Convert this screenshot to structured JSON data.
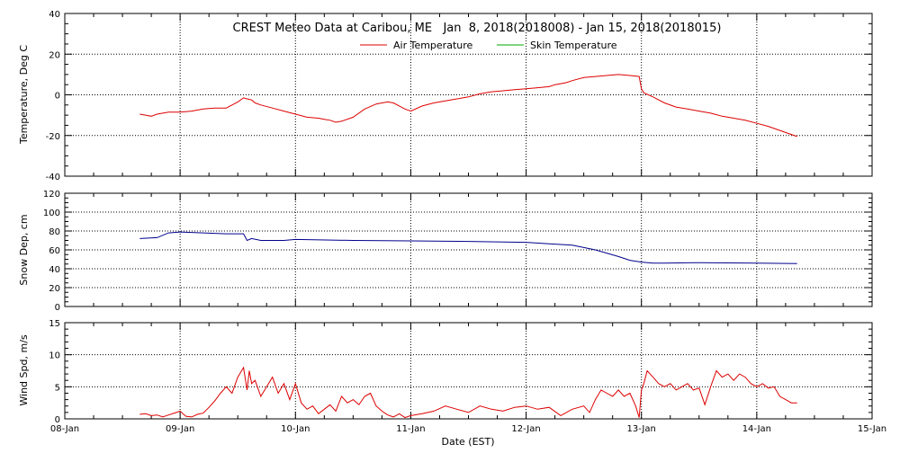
{
  "chart_data": [
    {
      "type": "line",
      "title": "CREST Meteo Data at Caribou, ME   Jan  8, 2018(2018008) - Jan 15, 2018(2018015)",
      "ylabel": "Temperature, Deg C",
      "xlabel": "",
      "ylim": [
        -40,
        40
      ],
      "yticks": [
        "40",
        "20",
        "0",
        "-20",
        "-40"
      ],
      "legend": "top-center",
      "grid": true,
      "series": [
        {
          "name": "Air Temperature",
          "color": "#dd0000",
          "x": [
            0.65,
            0.7,
            0.75,
            0.8,
            0.9,
            1.0,
            1.1,
            1.2,
            1.3,
            1.4,
            1.5,
            1.55,
            1.58,
            1.62,
            1.65,
            1.7,
            1.8,
            1.9,
            2.0,
            2.1,
            2.2,
            2.25,
            2.3,
            2.35,
            2.4,
            2.5,
            2.6,
            2.7,
            2.75,
            2.8,
            2.85,
            2.9,
            2.95,
            3.0,
            3.1,
            3.2,
            3.3,
            3.4,
            3.5,
            3.6,
            3.7,
            3.8,
            3.9,
            4.0,
            4.1,
            4.2,
            4.25,
            4.3,
            4.35,
            4.4,
            4.5,
            4.6,
            4.7,
            4.8,
            4.9,
            4.98,
            5.0,
            5.02,
            5.1,
            5.2,
            5.3,
            5.4,
            5.5,
            5.6,
            5.7,
            5.8,
            5.9,
            6.0,
            6.1,
            6.2,
            6.3,
            6.35
          ],
          "y": [
            -9.5,
            -10,
            -10.5,
            -9.5,
            -8.5,
            -8.5,
            -8,
            -7,
            -6.5,
            -6.5,
            -3.5,
            -1.5,
            -2,
            -2.5,
            -4,
            -5,
            -6.5,
            -8,
            -9.5,
            -11,
            -11.5,
            -12,
            -12.5,
            -13.5,
            -13,
            -11,
            -7,
            -4.5,
            -4,
            -3.5,
            -4,
            -5.5,
            -7,
            -8,
            -5.5,
            -4,
            -3,
            -2,
            -1,
            0.5,
            1.5,
            2,
            2.5,
            3,
            3.5,
            4,
            5,
            5.5,
            6,
            7,
            8.5,
            9,
            9.5,
            10,
            9.5,
            9,
            3,
            1,
            -1,
            -4,
            -6,
            -7,
            -8,
            -9,
            -10.5,
            -11.5,
            -12.5,
            -14,
            -15.5,
            -17.5,
            -19.5,
            -20.5
          ]
        },
        {
          "name": "Skin Temperature",
          "color": "#00aa00",
          "x": [],
          "y": []
        }
      ]
    },
    {
      "type": "line",
      "title": "",
      "ylabel": "Snow Dep, cm",
      "xlabel": "",
      "ylim": [
        0,
        120
      ],
      "yticks": [
        "120",
        "100",
        "80",
        "60",
        "40",
        "20",
        "0"
      ],
      "grid": true,
      "series": [
        {
          "name": "Snow Depth",
          "color": "#00008b",
          "x": [
            0.65,
            0.8,
            0.9,
            1.0,
            1.2,
            1.4,
            1.55,
            1.58,
            1.62,
            1.7,
            1.8,
            1.9,
            2.0,
            2.5,
            3.0,
            3.5,
            4.0,
            4.2,
            4.4,
            4.6,
            4.8,
            4.9,
            5.0,
            5.1,
            5.2,
            5.5,
            6.0,
            6.35
          ],
          "y": [
            72,
            73,
            78,
            79,
            78,
            77,
            77,
            70,
            72,
            70,
            70,
            70,
            71,
            70,
            69.5,
            69,
            68,
            66.5,
            65,
            60,
            53,
            49,
            47,
            46,
            46,
            46.5,
            46,
            45.5
          ]
        }
      ]
    },
    {
      "type": "line",
      "title": "",
      "ylabel": "Wind Spd, m/s",
      "xlabel": "Date (EST)",
      "ylim": [
        0,
        15
      ],
      "yticks": [
        "15",
        "10",
        "5",
        "0"
      ],
      "xticks": [
        "08-Jan",
        "09-Jan",
        "10-Jan",
        "11-Jan",
        "12-Jan",
        "13-Jan",
        "14-Jan",
        "15-Jan"
      ],
      "grid": true,
      "series": [
        {
          "name": "Wind Speed",
          "color": "#dd0000",
          "x": [
            0.65,
            0.7,
            0.75,
            0.8,
            0.85,
            0.9,
            0.95,
            1.0,
            1.05,
            1.1,
            1.15,
            1.2,
            1.25,
            1.3,
            1.35,
            1.4,
            1.45,
            1.5,
            1.55,
            1.58,
            1.6,
            1.62,
            1.65,
            1.7,
            1.75,
            1.8,
            1.85,
            1.9,
            1.95,
            2.0,
            2.05,
            2.1,
            2.15,
            2.2,
            2.25,
            2.3,
            2.35,
            2.4,
            2.45,
            2.5,
            2.55,
            2.6,
            2.65,
            2.7,
            2.75,
            2.8,
            2.85,
            2.9,
            2.95,
            3.0,
            3.1,
            3.2,
            3.3,
            3.4,
            3.5,
            3.6,
            3.7,
            3.8,
            3.9,
            4.0,
            4.1,
            4.2,
            4.3,
            4.4,
            4.5,
            4.55,
            4.6,
            4.65,
            4.7,
            4.75,
            4.8,
            4.85,
            4.9,
            4.95,
            4.98,
            5.0,
            5.02,
            5.05,
            5.1,
            5.15,
            5.2,
            5.25,
            5.3,
            5.35,
            5.4,
            5.45,
            5.5,
            5.55,
            5.6,
            5.65,
            5.7,
            5.75,
            5.8,
            5.85,
            5.9,
            5.95,
            6.0,
            6.05,
            6.1,
            6.15,
            6.2,
            6.25,
            6.3,
            6.35
          ],
          "y": [
            0.7,
            0.8,
            0.5,
            0.6,
            0.3,
            0.6,
            0.9,
            1.2,
            0.4,
            0.3,
            0.7,
            0.9,
            1.8,
            2.8,
            4.0,
            5.0,
            4.0,
            6.5,
            8.0,
            4.5,
            7.5,
            5.5,
            6.0,
            3.5,
            5.0,
            6.5,
            4.0,
            5.5,
            3.0,
            5.5,
            2.5,
            1.5,
            2.0,
            0.8,
            1.5,
            2.2,
            1.2,
            3.5,
            2.5,
            3.0,
            2.2,
            3.5,
            4.0,
            2.0,
            1.2,
            0.6,
            0.3,
            0.8,
            0.2,
            0.5,
            0.8,
            1.2,
            2.0,
            1.5,
            1.0,
            2.0,
            1.5,
            1.2,
            1.8,
            2.0,
            1.5,
            1.8,
            0.5,
            1.5,
            2.0,
            1.0,
            3.0,
            4.5,
            4.0,
            3.5,
            4.5,
            3.5,
            4.0,
            2.0,
            0.2,
            4.5,
            5.5,
            7.5,
            6.5,
            5.5,
            5.0,
            5.5,
            4.5,
            5.0,
            5.5,
            4.5,
            4.8,
            2.2,
            5.0,
            7.5,
            6.5,
            7.0,
            6.0,
            7.0,
            6.5,
            5.5,
            5.0,
            5.5,
            4.8,
            5.0,
            3.5,
            3.0,
            2.5,
            2.5
          ]
        }
      ]
    }
  ]
}
